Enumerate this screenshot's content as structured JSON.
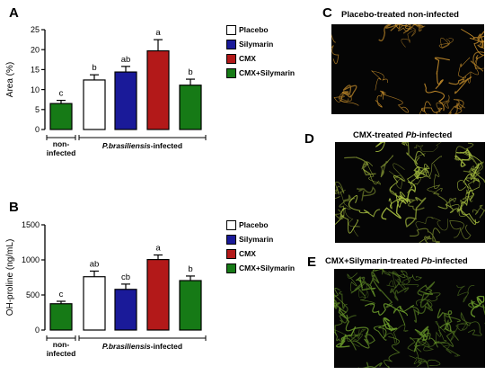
{
  "colors": {
    "placebo": "#ffffff",
    "silymarin": "#1a1a99",
    "cmx": "#b31919",
    "cmx_silymarin": "#167a16",
    "noninfected": "#167a16"
  },
  "chart_data": [
    {
      "panel": "A",
      "type": "bar",
      "ylabel": "Area (%)",
      "ylim": [
        0,
        25
      ],
      "yticks": [
        "0",
        "5",
        "10",
        "15",
        "20",
        "25"
      ],
      "group_labels": {
        "noninfected": "non-infected",
        "infected_prefix": "P.brasiliensis",
        "infected_suffix": "-infected"
      },
      "legend": [
        "Placebo",
        "Silymarin",
        "CMX",
        "CMX+Silymarin"
      ],
      "bars": [
        {
          "value": 6.5,
          "error": 0.8,
          "letter": "c"
        },
        {
          "value": 12.4,
          "error": 1.3,
          "letter": "b"
        },
        {
          "value": 14.4,
          "error": 1.4,
          "letter": "ab"
        },
        {
          "value": 19.7,
          "error": 2.8,
          "letter": "a"
        },
        {
          "value": 11.1,
          "error": 1.5,
          "letter": "b"
        }
      ]
    },
    {
      "panel": "B",
      "type": "bar",
      "ylabel": "OH-proline (ng/mL)",
      "ylim": [
        0,
        1500
      ],
      "yticks": [
        "0",
        "500",
        "1000",
        "1500"
      ],
      "group_labels": {
        "noninfected": "non-infected",
        "infected_prefix": "P.brasiliensis",
        "infected_suffix": "-infected"
      },
      "legend": [
        "Placebo",
        "Silymarin",
        "CMX",
        "CMX+Silymarin"
      ],
      "bars": [
        {
          "value": 375,
          "error": 35,
          "letter": "c"
        },
        {
          "value": 760,
          "error": 80,
          "letter": "ab"
        },
        {
          "value": 580,
          "error": 75,
          "letter": "cb"
        },
        {
          "value": 1005,
          "error": 65,
          "letter": "a"
        },
        {
          "value": 705,
          "error": 65,
          "letter": "b"
        }
      ]
    }
  ],
  "micrographs": [
    {
      "letter": "C",
      "title": "Placebo-treated non-infected",
      "title_italic": "",
      "title_suffix": "",
      "fiber": "#e0a030"
    },
    {
      "letter": "D",
      "title": "CMX-treated ",
      "title_italic": "Pb",
      "title_suffix": "-infected",
      "fiber": "#a8c040"
    },
    {
      "letter": "E",
      "title": "CMX+Silymarin-treated ",
      "title_italic": "Pb",
      "title_suffix": "-infected",
      "fiber": "#6a9a2a"
    }
  ]
}
